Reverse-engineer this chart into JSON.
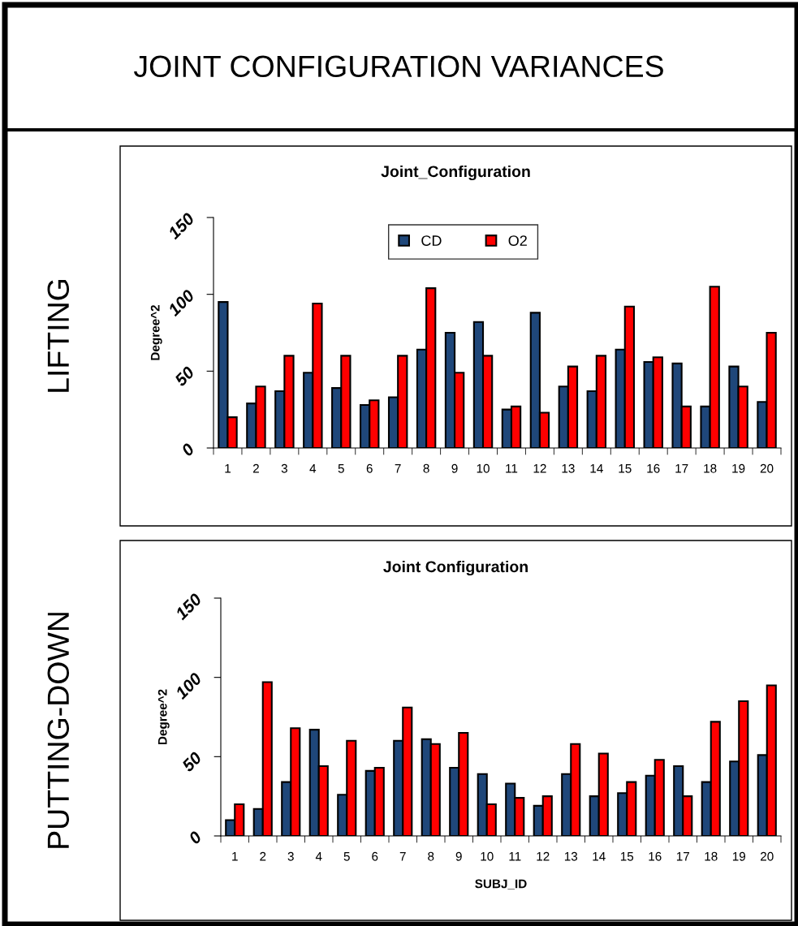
{
  "chart_data": [
    {
      "type": "bar",
      "title": "Joint_Configuration",
      "ylabel": "Degree^2",
      "annotations": [
        "JOINT CONFIGURATION VARIANCES",
        "LIFTING"
      ],
      "categories": [
        "1",
        "2",
        "3",
        "4",
        "5",
        "6",
        "7",
        "8",
        "9",
        "10",
        "11",
        "12",
        "13",
        "14",
        "15",
        "16",
        "17",
        "18",
        "19",
        "20"
      ],
      "series": [
        {
          "name": "CD",
          "color": "#1f477a",
          "values": [
            95,
            29,
            37,
            49,
            39,
            28,
            33,
            64,
            75,
            82,
            25,
            88,
            40,
            37,
            64,
            56,
            55,
            27,
            53,
            30
          ]
        },
        {
          "name": "O2",
          "color": "#ff0000",
          "values": [
            20,
            40,
            60,
            94,
            60,
            31,
            60,
            104,
            49,
            60,
            27,
            23,
            53,
            60,
            92,
            59,
            27,
            105,
            40,
            75
          ]
        }
      ],
      "ylim": [
        0,
        150
      ],
      "yticks": [
        0,
        50,
        100,
        150
      ],
      "grid": false,
      "legend": "top"
    },
    {
      "type": "bar",
      "title": "Joint Configuration",
      "ylabel": "Degree^2",
      "xlabel": "SUBJ_ID",
      "annotations": [
        "PUTTING-DOWN"
      ],
      "categories": [
        "1",
        "2",
        "3",
        "4",
        "5",
        "6",
        "7",
        "8",
        "9",
        "10",
        "11",
        "12",
        "13",
        "14",
        "15",
        "16",
        "17",
        "18",
        "19",
        "20"
      ],
      "series": [
        {
          "color": "#1f477a",
          "values": [
            10,
            17,
            34,
            67,
            26,
            41,
            60,
            61,
            43,
            39,
            33,
            19,
            39,
            25,
            27,
            38,
            44,
            34,
            47,
            51
          ]
        },
        {
          "color": "#ff0000",
          "values": [
            20,
            97,
            68,
            44,
            60,
            43,
            81,
            58,
            65,
            20,
            24,
            25,
            58,
            52,
            34,
            48,
            25,
            72,
            85,
            95
          ]
        }
      ],
      "ylim": [
        0,
        150
      ],
      "yticks": [
        0,
        50,
        100,
        150
      ],
      "grid": false
    }
  ]
}
